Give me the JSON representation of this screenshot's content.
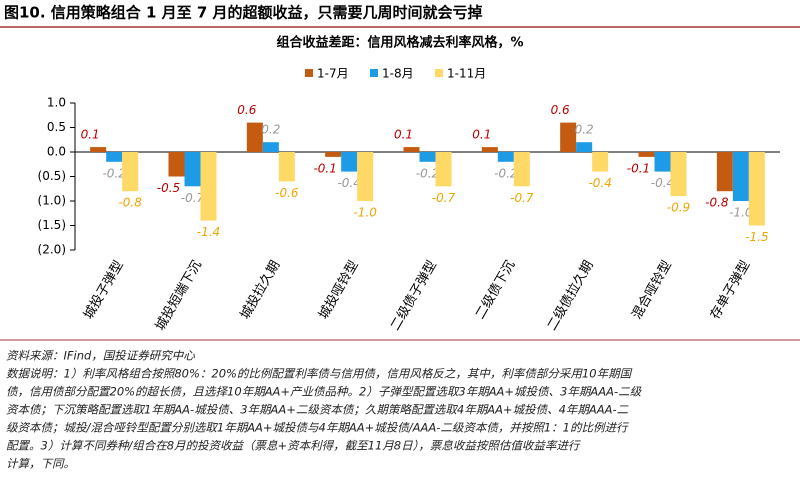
{
  "header": {
    "title": "图10. 信用策略组合 1 月至 7 月的超额收益，只需要几周时间就会亏掉"
  },
  "chart_data": {
    "type": "bar",
    "title": "组合收益差距：信用风格减去利率风格，%",
    "categories": [
      "城投子弹型",
      "城投短端下沉",
      "城投拉久期",
      "城投哑铃型",
      "二级债子弹型",
      "二级债下沉",
      "二级债拉久期",
      "混合哑铃型",
      "存单子弹型"
    ],
    "series": [
      {
        "name": "1-7月",
        "color": "#c55a11",
        "values": [
          0.1,
          -0.5,
          0.6,
          -0.1,
          0.1,
          0.1,
          0.6,
          -0.1,
          -0.8
        ],
        "value_labels": [
          "0.1",
          "-0.5",
          "0.6",
          "-0.1",
          "0.1",
          "0.1",
          "0.6",
          "-0.1",
          "-0.8"
        ]
      },
      {
        "name": "1-8月",
        "color": "#1e9be6",
        "values": [
          -0.2,
          -0.7,
          0.2,
          -0.4,
          -0.2,
          -0.2,
          0.2,
          -0.4,
          -1.0
        ],
        "value_labels": [
          "-0.2",
          "-0.7",
          "0.2",
          "-0.4",
          "-0.2",
          "-0.2",
          "0.2",
          "-0.4",
          "-1.0"
        ]
      },
      {
        "name": "1-11月",
        "color": "#ffd966",
        "values": [
          -0.8,
          -1.4,
          -0.6,
          -1.0,
          -0.7,
          -0.7,
          -0.4,
          -0.9,
          -1.5
        ],
        "value_labels": [
          "-0.8",
          "-1.4",
          "-0.6",
          "-1.0",
          "-0.7",
          "-0.7",
          "-0.4",
          "-0.9",
          "-1.5"
        ]
      }
    ],
    "ylim": [
      -2,
      1
    ],
    "yticks": [
      {
        "value": 1,
        "label": "1.0"
      },
      {
        "value": 0.5,
        "label": "0.5"
      },
      {
        "value": 0,
        "label": "0.0"
      },
      {
        "value": -0.5,
        "label": "(0.5)"
      },
      {
        "value": -1,
        "label": "(1.0)"
      },
      {
        "value": -1.5,
        "label": "(1.5)"
      },
      {
        "value": -2,
        "label": "(2.0)"
      }
    ],
    "legend": "top"
  },
  "notes": {
    "source": "资料来源：IFind，国投证券研究中心",
    "lines": [
      "数据说明：1）利率风格组合按照80%：20%的比例配置利率债与信用债，信用风格反之，其中，利率债部分采用10年期国",
      "债，信用债部分配置20%的超长债，且选择10年期AA+产业债品种。2）子弹型配置选取3年期AA+城投债、3年期AAA-二级",
      "资本债；下沉策略配置选取1年期AA-城投债、3年期AA+二级资本债；久期策略配置选取4年期AA+城投债、4年期AAA-二",
      "级资本债；城投/混合哑铃型配置分别选取1年期AA+城投债与4年期AA+城投债/AAA-二级资本债，并按照1：1的比例进行",
      "配置。3）计算不同券种/组合在8月的投资收益（票息+资本利得，截至11月8日），票息收益按照估值收益率进行",
      "计算，下同。"
    ]
  }
}
